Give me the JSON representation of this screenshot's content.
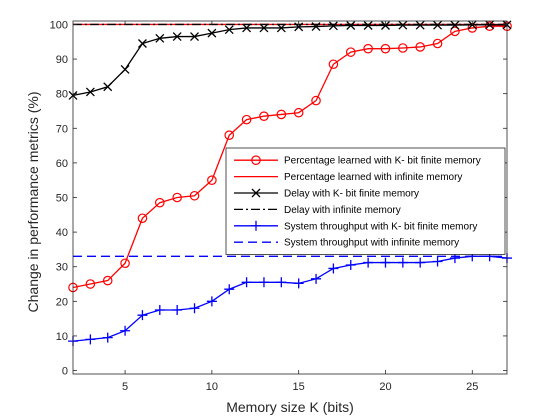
{
  "chart_data": {
    "type": "line",
    "xlabel": "Memory size K (bits)",
    "ylabel": "Change in performance metrics (%)",
    "xlim": [
      2,
      27
    ],
    "ylim": [
      -1,
      101
    ],
    "xticks": [
      5,
      10,
      15,
      20,
      25
    ],
    "yticks": [
      0,
      10,
      20,
      30,
      40,
      50,
      60,
      70,
      80,
      90,
      100
    ],
    "grid": false,
    "legend_position": "center-right",
    "x": [
      2,
      3,
      4,
      5,
      6,
      7,
      8,
      9,
      10,
      11,
      12,
      13,
      14,
      15,
      16,
      17,
      18,
      19,
      20,
      21,
      22,
      23,
      24,
      25,
      26,
      27
    ],
    "series": [
      {
        "name": "Percentage learned with K- bit finite memory",
        "color": "#ff0000",
        "line": "solid",
        "marker": "circle",
        "values": [
          24,
          25,
          26,
          31,
          44,
          48.5,
          50,
          50.5,
          55,
          68,
          72.5,
          73.5,
          74,
          74.5,
          78,
          88.5,
          92,
          93,
          93,
          93.2,
          93.5,
          94.5,
          98,
          99,
          99.5,
          99.5
        ]
      },
      {
        "name": "Percentage learned with infinite memory",
        "color": "#ff0000",
        "line": "solid",
        "marker": "none",
        "values": [
          100,
          100,
          100,
          100,
          100,
          100,
          100,
          100,
          100,
          100,
          100,
          100,
          100,
          100,
          100,
          100,
          100,
          100,
          100,
          100,
          100,
          100,
          100,
          100,
          100,
          100
        ]
      },
      {
        "name": "Delay with K- bit finite memory",
        "color": "#000000",
        "line": "solid",
        "marker": "x",
        "values": [
          79.5,
          80.5,
          82,
          87,
          94.5,
          96,
          96.5,
          96.5,
          97.5,
          98.5,
          99,
          99,
          99,
          99.3,
          99.4,
          99.6,
          99.7,
          99.7,
          99.7,
          99.8,
          99.8,
          99.8,
          99.8,
          99.9,
          99.9,
          99.9
        ]
      },
      {
        "name": "Delay with infinite memory",
        "color": "#000000",
        "line": "dashdot",
        "marker": "none",
        "values": [
          100,
          100,
          100,
          100,
          100,
          100,
          100,
          100,
          100,
          100,
          100,
          100,
          100,
          100,
          100,
          100,
          100,
          100,
          100,
          100,
          100,
          100,
          100,
          100,
          100,
          100
        ]
      },
      {
        "name": "System throughput with K- bit finite memory",
        "color": "#0000ff",
        "line": "solid",
        "marker": "plus",
        "values": [
          8.5,
          9,
          9.5,
          11.5,
          16,
          17.5,
          17.5,
          18,
          20,
          23.5,
          25.5,
          25.5,
          25.5,
          25.2,
          26.5,
          29.5,
          30.5,
          31.2,
          31.2,
          31.2,
          31.2,
          31.5,
          32.5,
          33,
          33,
          32.5
        ]
      },
      {
        "name": "System throughput with infinite memory",
        "color": "#0000ff",
        "line": "dashed",
        "marker": "none",
        "values": [
          33,
          33,
          33,
          33,
          33,
          33,
          33,
          33,
          33,
          33,
          33,
          33,
          33,
          33,
          33,
          33,
          33,
          33,
          33,
          33,
          33,
          33,
          33,
          33,
          33,
          33
        ]
      }
    ]
  }
}
